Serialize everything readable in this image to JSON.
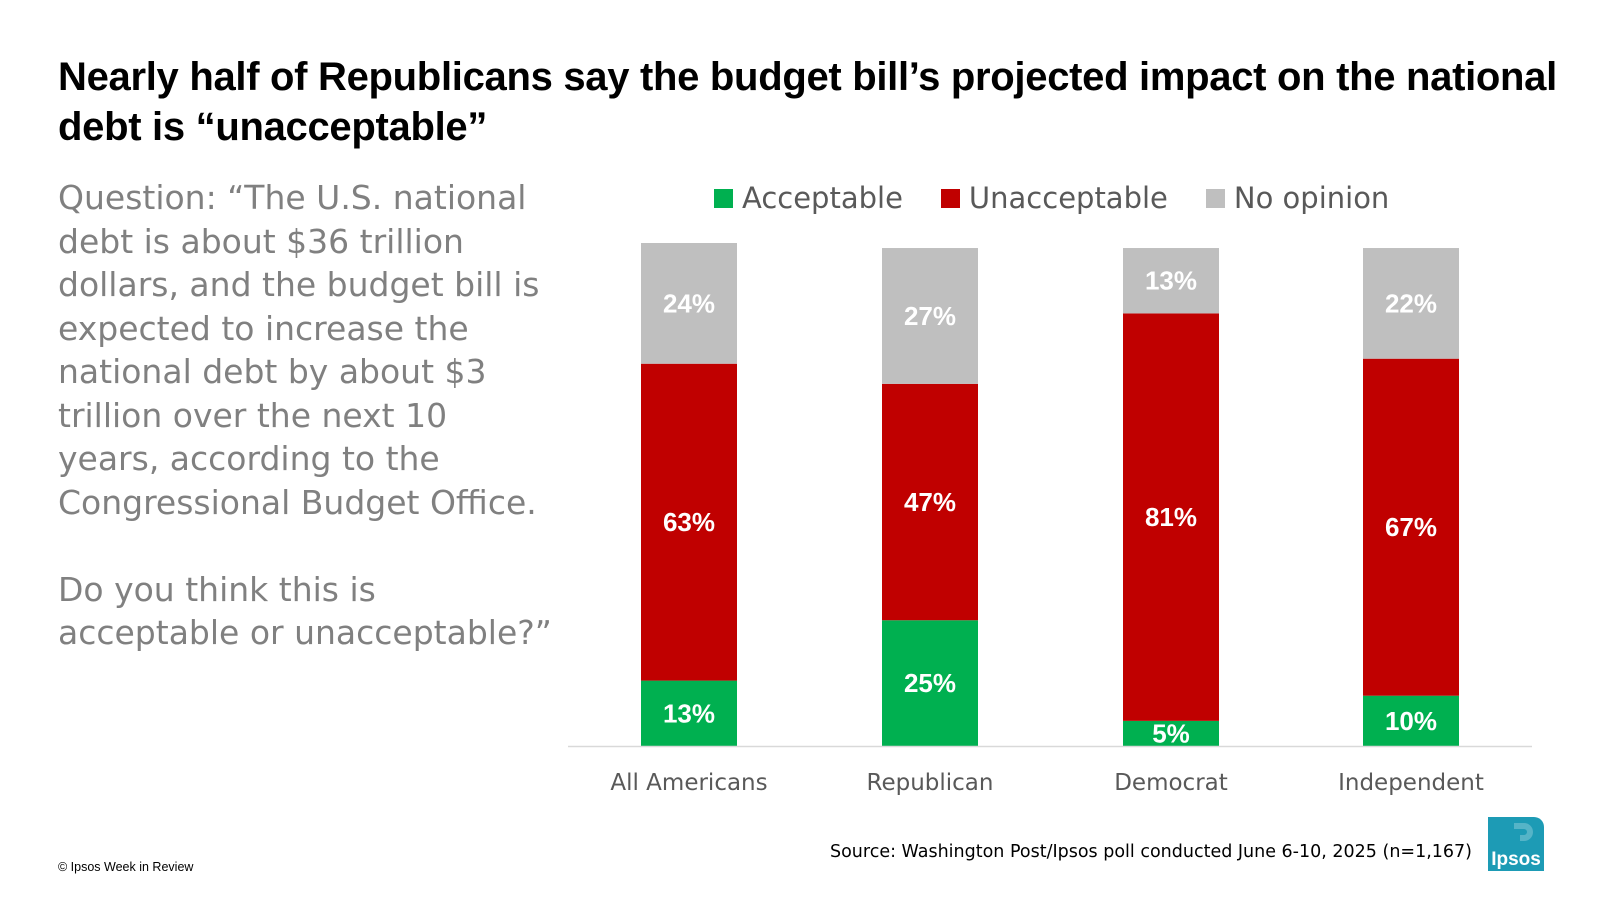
{
  "title": "Nearly half of Republicans say the budget bill’s projected impact on the national debt is “unacceptable”",
  "question": "Question: “The U.S. national debt is about $36 trillion dollars, and the budget bill is expected to increase the national debt by about $3 trillion over the next 10 years, according to the Congressional Budget Office.\n\nDo you think this is acceptable or unacceptable?”",
  "source": "Source: Washington Post/Ipsos poll conducted June 6-10, 2025 (n=1,167)",
  "copyright": "© Ipsos Week in Review",
  "logo_text": "Ipsos",
  "colors": {
    "acceptable": "#00b050",
    "unacceptable": "#c00000",
    "no_opinion": "#bfbfbf",
    "logo": "#1d9bb5"
  },
  "chart_data": {
    "type": "bar",
    "stacked": true,
    "categories": [
      "All Americans",
      "Republican",
      "Democrat",
      "Independent"
    ],
    "series": [
      {
        "name": "Acceptable",
        "values": [
          13,
          25,
          5,
          10
        ],
        "labels": [
          "13%",
          "25%",
          "5%",
          "10%"
        ],
        "color": "#00b050"
      },
      {
        "name": "Unacceptable",
        "values": [
          63,
          47,
          81,
          67
        ],
        "labels": [
          "63%",
          "47%",
          "81%",
          "67%"
        ],
        "color": "#c00000"
      },
      {
        "name": "No opinion",
        "values": [
          24,
          27,
          13,
          22
        ],
        "labels": [
          "24%",
          "27%",
          "13%",
          "22%"
        ],
        "color": "#bfbfbf"
      }
    ],
    "ylim": [
      0,
      100
    ],
    "legend_position": "top",
    "grid": false
  }
}
